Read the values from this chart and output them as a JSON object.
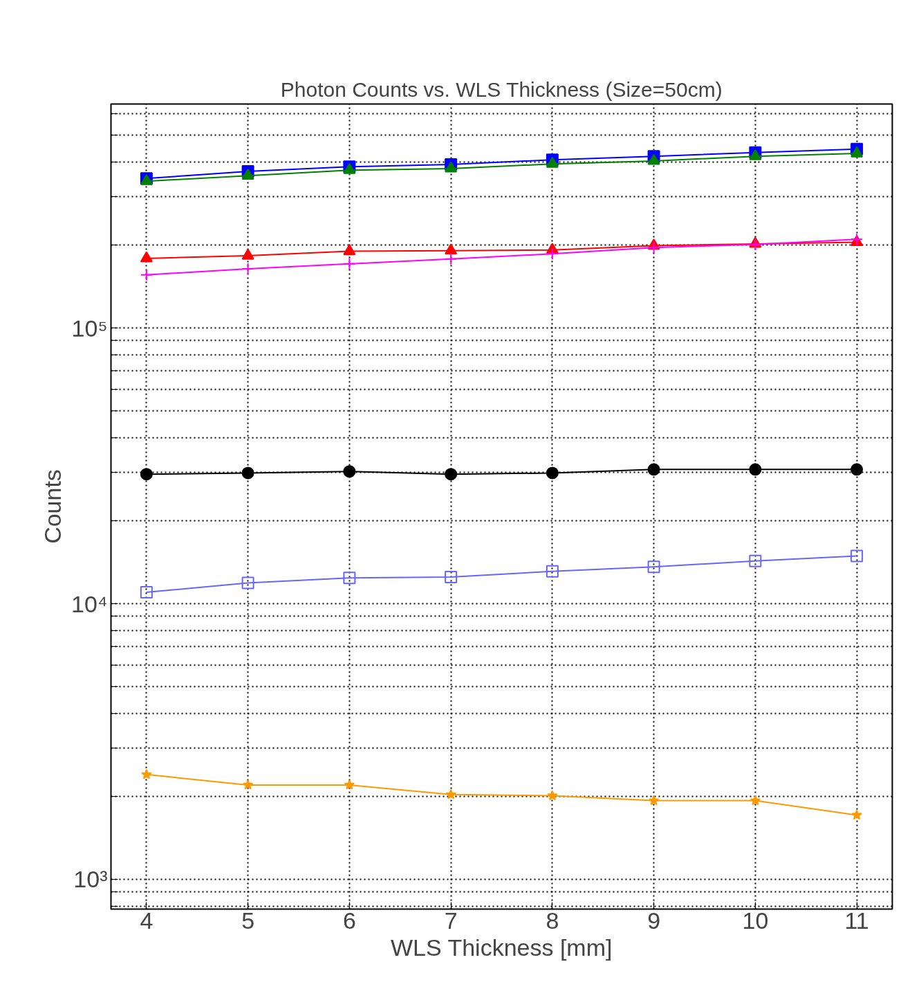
{
  "chart_data": {
    "type": "line",
    "title": "Photon Counts vs. WLS Thickness (Size=50cm)",
    "xlabel": "WLS Thickness [mm]",
    "ylabel": "Counts",
    "log": "y",
    "grid": true,
    "line_style": "solid",
    "x": [
      4,
      5,
      6,
      7,
      8,
      9,
      10,
      11
    ],
    "xlim": [
      3.65,
      11.35
    ],
    "xticks": [
      4,
      5,
      6,
      7,
      8,
      9,
      10,
      11
    ],
    "ylim": [
      780,
      650000
    ],
    "yticks": [
      {
        "value": 800,
        "label": null
      },
      {
        "value": 900,
        "label": null
      },
      {
        "value": 1000,
        "label": "10³"
      },
      {
        "value": 2000,
        "label": null
      },
      {
        "value": 3000,
        "label": null
      },
      {
        "value": 4000,
        "label": null
      },
      {
        "value": 5000,
        "label": null
      },
      {
        "value": 6000,
        "label": null
      },
      {
        "value": 7000,
        "label": null
      },
      {
        "value": 8000,
        "label": null
      },
      {
        "value": 9000,
        "label": null
      },
      {
        "value": 10000,
        "label": "10⁴"
      },
      {
        "value": 20000,
        "label": null
      },
      {
        "value": 30000,
        "label": null
      },
      {
        "value": 40000,
        "label": null
      },
      {
        "value": 50000,
        "label": null
      },
      {
        "value": 60000,
        "label": null
      },
      {
        "value": 70000,
        "label": null
      },
      {
        "value": 80000,
        "label": null
      },
      {
        "value": 90000,
        "label": null
      },
      {
        "value": 100000,
        "label": "10⁵"
      },
      {
        "value": 200000,
        "label": null
      },
      {
        "value": 300000,
        "label": null
      },
      {
        "value": 400000,
        "label": null
      },
      {
        "value": 500000,
        "label": null
      },
      {
        "value": 600000,
        "label": null
      }
    ],
    "series": [
      {
        "color": "#0000ff",
        "marker": "square",
        "values": [
          349000,
          370000,
          385000,
          392000,
          408000,
          420000,
          433000,
          446000
        ]
      },
      {
        "color": "#008000",
        "marker": "triangle",
        "values": [
          341000,
          357000,
          374000,
          379000,
          394000,
          404000,
          420000,
          430000
        ]
      },
      {
        "color": "#ff0000",
        "marker": "triangle",
        "values": [
          179000,
          183000,
          190000,
          191000,
          192000,
          199000,
          202000,
          205000
        ]
      },
      {
        "color": "#ff00ff",
        "marker": "cross",
        "values": [
          156000,
          164000,
          171000,
          178000,
          186000,
          196000,
          201000,
          210000
        ]
      },
      {
        "color": "#000000",
        "marker": "circle",
        "values": [
          29500,
          29800,
          30200,
          29500,
          29800,
          30700,
          30700,
          30700
        ]
      },
      {
        "color": "#6666ff",
        "marker": "square_open",
        "values": [
          11000,
          11900,
          12400,
          12500,
          13100,
          13600,
          14300,
          14900
        ]
      },
      {
        "color": "#ff9900",
        "marker": "star",
        "values": [
          2400,
          2200,
          2200,
          2030,
          2010,
          1930,
          1930,
          1710
        ]
      }
    ]
  }
}
